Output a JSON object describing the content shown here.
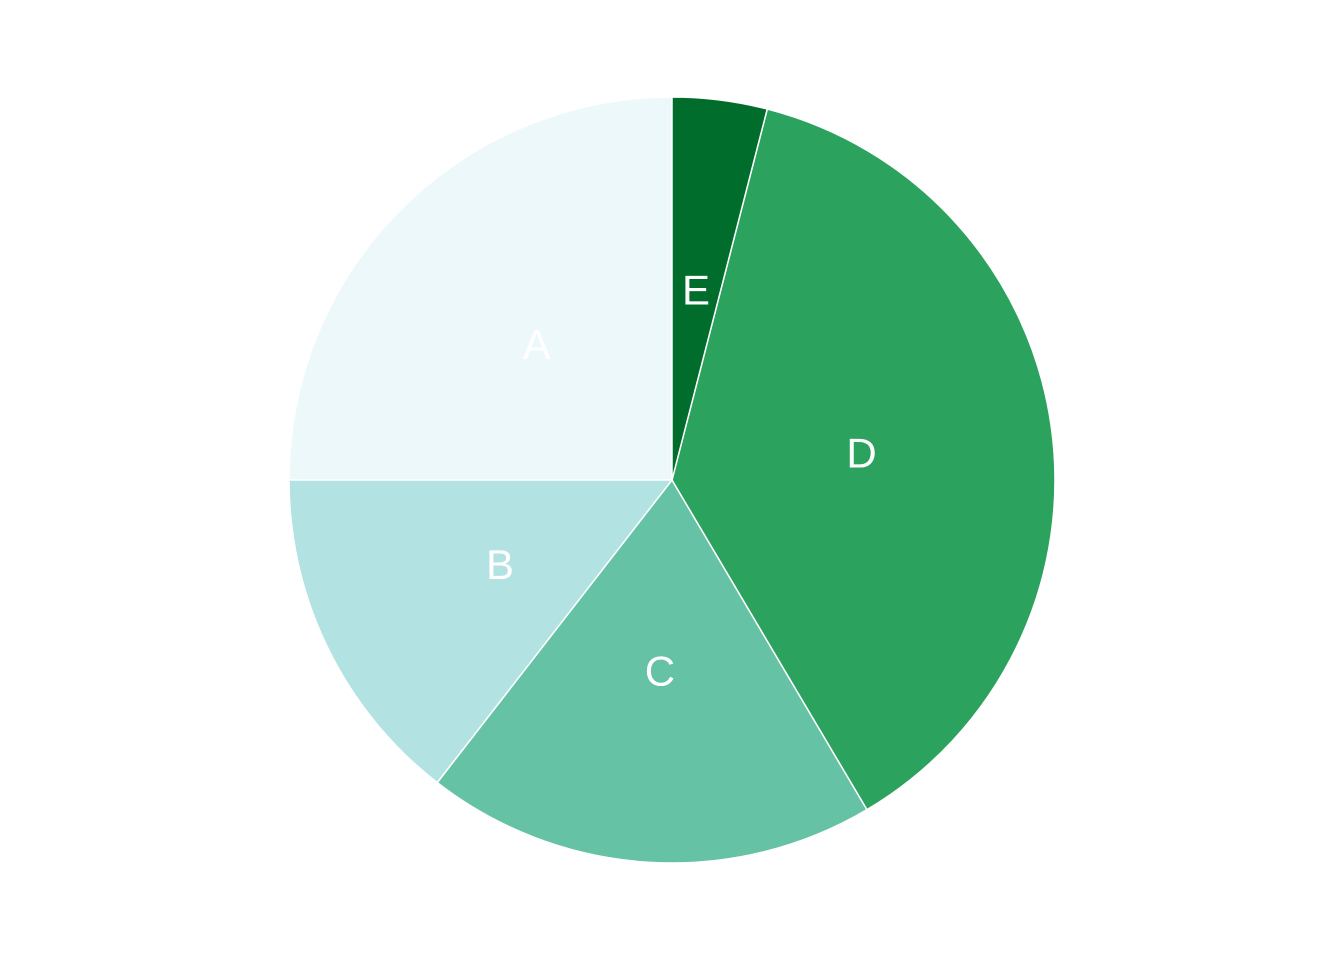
{
  "chart_data": {
    "type": "pie",
    "title": "",
    "start": "top",
    "direction": "counterclockwise",
    "legend": "none",
    "slices": [
      {
        "label": "A",
        "value": 25,
        "color": "#EDF8FB"
      },
      {
        "label": "B",
        "value": 14.5,
        "color": "#B2E2E2"
      },
      {
        "label": "C",
        "value": 19,
        "color": "#66C2A4"
      },
      {
        "label": "D",
        "value": 37.5,
        "color": "#2CA25F"
      },
      {
        "label": "E",
        "value": 4,
        "color": "#006D2C"
      }
    ],
    "slice_border_color": "#FFFFFF"
  }
}
